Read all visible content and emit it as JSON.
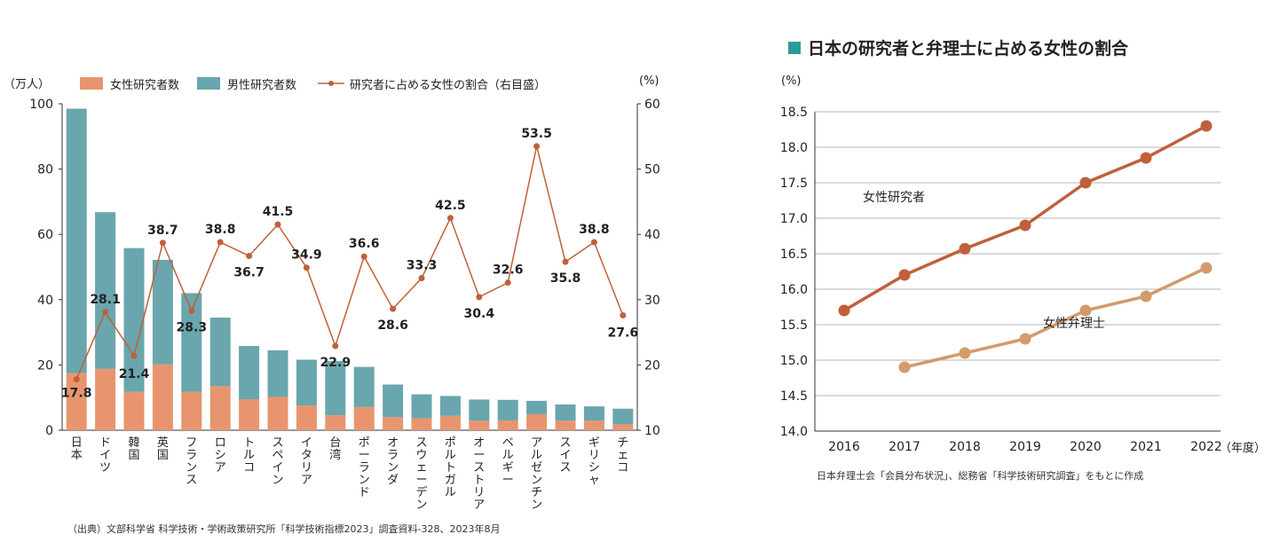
{
  "chart_data": [
    {
      "type": "bar",
      "stacked": true,
      "categories": [
        "日本",
        "ドイツ",
        "韓国",
        "英国",
        "フランス",
        "ロシア",
        "トルコ",
        "スペイン",
        "イタリア",
        "台湾",
        "ポーランド",
        "オランダ",
        "スウェーデン",
        "ポルトガル",
        "オーストリア",
        "ベルギー",
        "アルゼンチン",
        "スイス",
        "ギリシャ",
        "チェコ"
      ],
      "series": [
        {
          "name": "女性研究者数",
          "axis": "left",
          "color": "#e8956f",
          "values": [
            17.5,
            18.8,
            11.8,
            20.2,
            11.8,
            13.5,
            9.5,
            10.2,
            7.6,
            4.6,
            7.1,
            4.0,
            3.7,
            4.4,
            2.9,
            3.0,
            4.9,
            2.9,
            2.9,
            1.8
          ]
        },
        {
          "name": "男性研究者数",
          "axis": "left",
          "color": "#6aa6ad",
          "values": [
            81.0,
            48.0,
            44.0,
            32.0,
            30.2,
            21.0,
            16.3,
            14.3,
            14.0,
            16.6,
            12.3,
            10.0,
            7.3,
            6.1,
            6.5,
            6.3,
            4.1,
            5.0,
            4.4,
            4.8
          ]
        },
        {
          "name": "研究者に占める女性の割合（右目盛）",
          "axis": "right",
          "type": "line",
          "color": "#c0603a",
          "values": [
            17.8,
            28.1,
            21.4,
            38.7,
            28.3,
            38.8,
            36.7,
            41.5,
            34.9,
            22.9,
            36.6,
            28.6,
            33.3,
            42.5,
            30.4,
            32.6,
            53.5,
            35.8,
            38.8,
            27.6
          ]
        }
      ],
      "left_axis": {
        "label": "（万人）",
        "ticks": [
          0,
          20,
          40,
          60,
          80,
          100
        ],
        "ylim": [
          0,
          100
        ]
      },
      "right_axis": {
        "label": "(%)",
        "ticks": [
          10,
          20,
          30,
          40,
          50,
          60
        ],
        "ylim": [
          10,
          60
        ]
      },
      "legend": [
        "女性研究者数",
        "男性研究者数",
        "研究者に占める女性の割合（右目盛）"
      ],
      "legend_position": "top"
    },
    {
      "type": "line",
      "title": "日本の研究者と弁理士に占める女性の割合",
      "x": [
        2016,
        2017,
        2018,
        2019,
        2020,
        2021,
        2022
      ],
      "series": [
        {
          "name": "女性研究者",
          "color": "#c0603a",
          "values": [
            15.7,
            16.2,
            16.57,
            16.9,
            17.5,
            17.85,
            18.3
          ]
        },
        {
          "name": "女性弁理士",
          "color": "#d39a6c",
          "values": [
            null,
            14.9,
            15.1,
            15.3,
            15.7,
            15.9,
            16.3
          ]
        }
      ],
      "ylabel": "(%)",
      "xlabel": "（年度）",
      "ylim": [
        14.0,
        18.5
      ],
      "yticks": [
        "14.0",
        "14.5",
        "15.0",
        "15.5",
        "16.0",
        "16.5",
        "17.0",
        "17.5",
        "18.0",
        "18.5"
      ],
      "grid": true
    }
  ],
  "notes": {
    "source_left": "（出典）文部科学省 科学技術・学術政策研究所「科学技術指標2023」調査資料-328、2023年8月",
    "source_right": "日本弁理士会「会員分布状況」、総務省「科学技術研究調査」をもとに作成"
  },
  "colors": {
    "title_marker": "#2a9a9a"
  }
}
